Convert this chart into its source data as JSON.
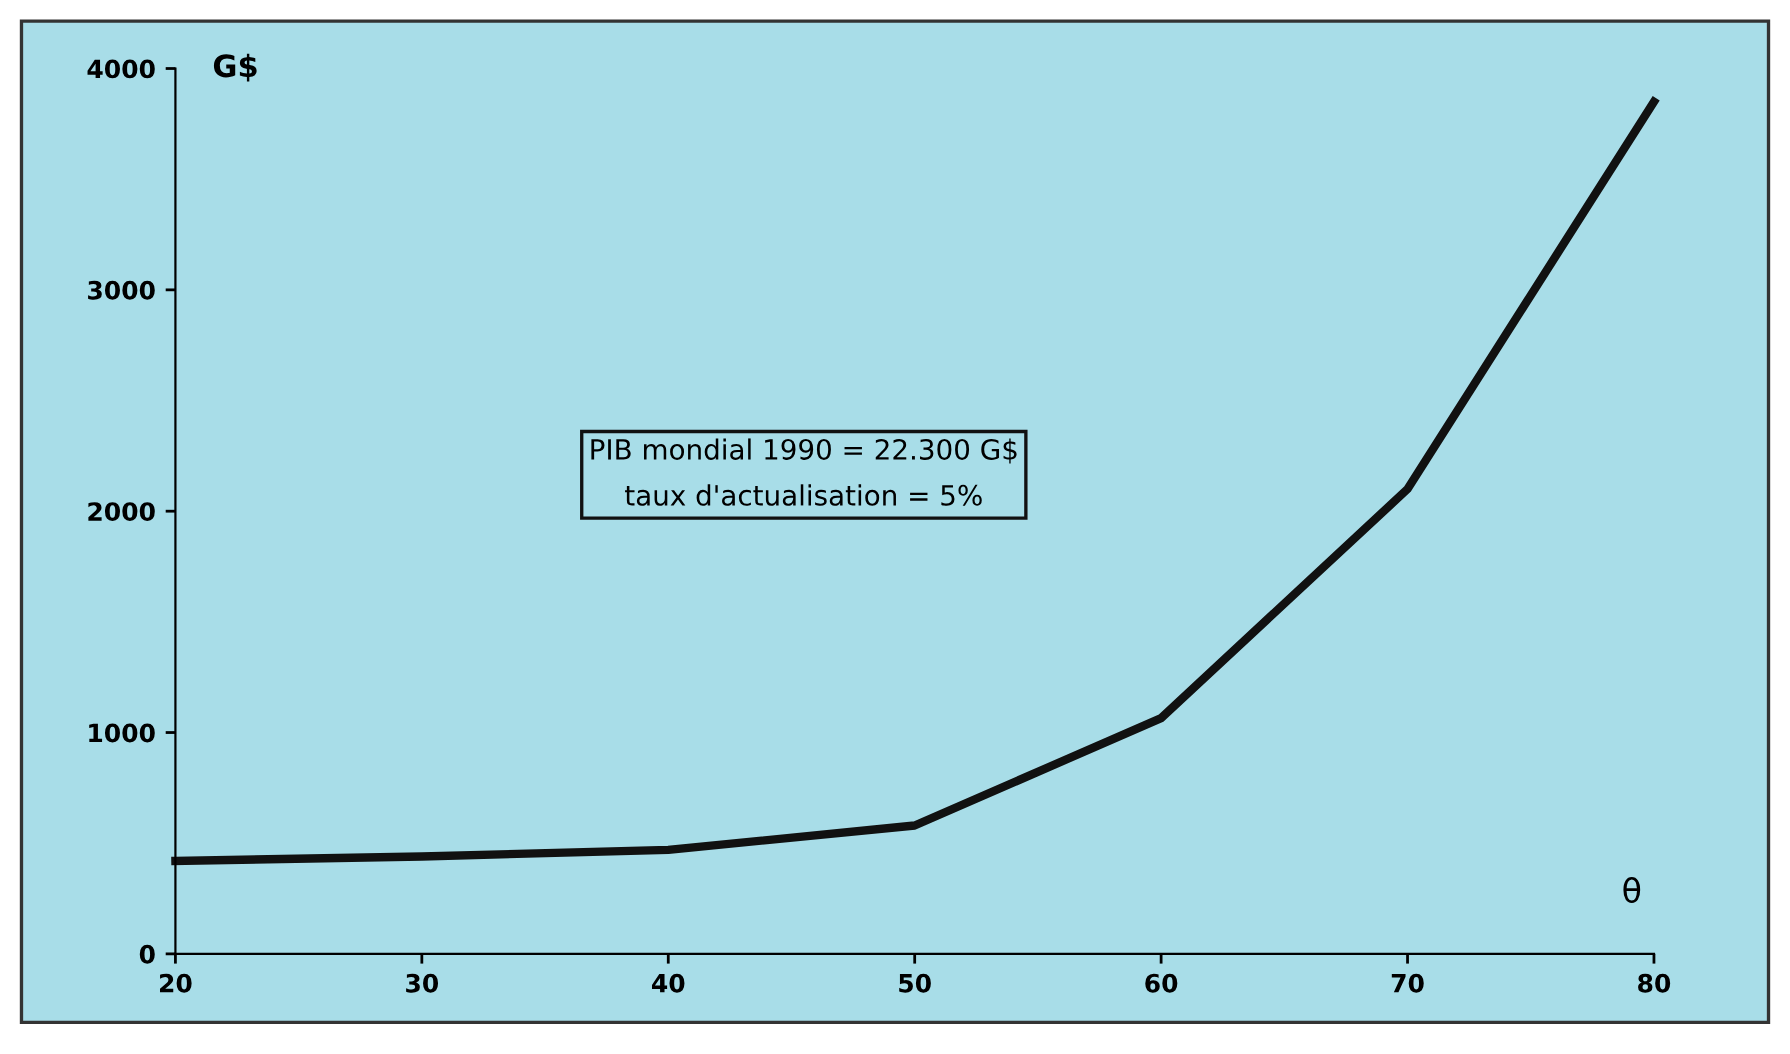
{
  "chart_data": {
    "type": "line",
    "xlabel": "θ",
    "ylabel": "G$",
    "x": [
      20,
      30,
      40,
      50,
      60,
      70,
      80
    ],
    "series": [
      {
        "color": "#111111",
        "values": [
          420,
          440,
          470,
          580,
          1065,
          2100,
          3850
        ]
      }
    ],
    "xlim": [
      20,
      80
    ],
    "xticks": [
      20,
      30,
      40,
      50,
      60,
      70,
      80
    ],
    "ylim": [
      0,
      4000
    ],
    "yticks": [
      0,
      1000,
      2000,
      3000,
      4000
    ],
    "grid": false,
    "legend": false,
    "marker": "none",
    "line_style": "solid",
    "annotations": [
      "PIB mondial 1990 = 22.300 G$\ntaux d'actualisation = 5%"
    ]
  }
}
